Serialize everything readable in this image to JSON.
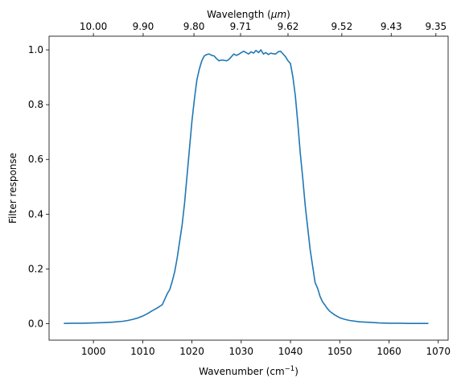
{
  "chart_data": {
    "type": "line",
    "xlabel": "Wavenumber (cm",
    "xlabel_sup": "−1",
    "xlabel_suffix": ")",
    "ylabel": "Filter response",
    "top_xlabel": "Wavelength (",
    "top_xlabel_unit": "μm",
    "top_xlabel_suffix": ")",
    "xlim": [
      991,
      1072
    ],
    "ylim": [
      -0.06,
      1.05
    ],
    "xticks": [
      1000,
      1010,
      1020,
      1030,
      1040,
      1050,
      1060,
      1070
    ],
    "xtick_labels": [
      "1000",
      "1010",
      "1020",
      "1030",
      "1040",
      "1050",
      "1060",
      "1070"
    ],
    "yticks": [
      0.0,
      0.2,
      0.4,
      0.6,
      0.8,
      1.0
    ],
    "ytick_labels": [
      "0.0",
      "0.2",
      "0.4",
      "0.6",
      "0.8",
      "1.0"
    ],
    "top_xticks_wavelength_um": [
      10.0,
      9.9,
      9.8,
      9.71,
      9.62,
      9.52,
      9.43,
      9.35
    ],
    "top_xtick_labels": [
      "10.00",
      "9.90",
      "9.80",
      "9.71",
      "9.62",
      "9.52",
      "9.43",
      "9.35"
    ],
    "series": [
      {
        "color": "#1f77b4",
        "x": [
          994,
          996,
          998,
          1000,
          1002,
          1004,
          1006,
          1007,
          1008,
          1009,
          1010,
          1011,
          1012,
          1013,
          1014,
          1014.5,
          1015,
          1015.5,
          1016,
          1016.5,
          1017,
          1017.5,
          1018,
          1018.5,
          1019,
          1019.5,
          1020,
          1020.5,
          1021,
          1021.5,
          1022,
          1022.5,
          1023,
          1023.5,
          1024,
          1024.5,
          1025,
          1025.5,
          1026,
          1026.5,
          1027,
          1027.5,
          1028,
          1028.5,
          1029,
          1029.5,
          1030,
          1030.5,
          1031,
          1031.5,
          1032,
          1032.5,
          1033,
          1033.5,
          1034,
          1034.5,
          1035,
          1035.5,
          1036,
          1036.5,
          1037,
          1037.5,
          1038,
          1038.5,
          1039,
          1039.5,
          1040,
          1040.5,
          1041,
          1041.5,
          1042,
          1042.5,
          1043,
          1043.5,
          1044,
          1044.5,
          1045,
          1045.5,
          1046,
          1046.5,
          1047,
          1047.5,
          1048,
          1049,
          1050,
          1051,
          1052,
          1054,
          1056,
          1058,
          1060,
          1062,
          1064,
          1066,
          1068
        ],
        "y": [
          0.001,
          0.002,
          0.002,
          0.003,
          0.004,
          0.006,
          0.009,
          0.012,
          0.016,
          0.021,
          0.028,
          0.037,
          0.048,
          0.058,
          0.07,
          0.09,
          0.11,
          0.125,
          0.155,
          0.19,
          0.24,
          0.3,
          0.36,
          0.44,
          0.54,
          0.64,
          0.74,
          0.82,
          0.89,
          0.93,
          0.96,
          0.978,
          0.983,
          0.985,
          0.98,
          0.978,
          0.968,
          0.96,
          0.963,
          0.962,
          0.96,
          0.965,
          0.975,
          0.985,
          0.98,
          0.984,
          0.99,
          0.995,
          0.99,
          0.985,
          0.993,
          0.988,
          0.998,
          0.99,
          1.0,
          0.985,
          0.99,
          0.983,
          0.988,
          0.986,
          0.985,
          0.993,
          0.995,
          0.985,
          0.975,
          0.96,
          0.95,
          0.9,
          0.83,
          0.73,
          0.62,
          0.53,
          0.43,
          0.35,
          0.27,
          0.21,
          0.15,
          0.13,
          0.1,
          0.08,
          0.068,
          0.055,
          0.045,
          0.032,
          0.022,
          0.016,
          0.012,
          0.007,
          0.005,
          0.003,
          0.002,
          0.002,
          0.001,
          0.001,
          0.001
        ]
      }
    ]
  }
}
